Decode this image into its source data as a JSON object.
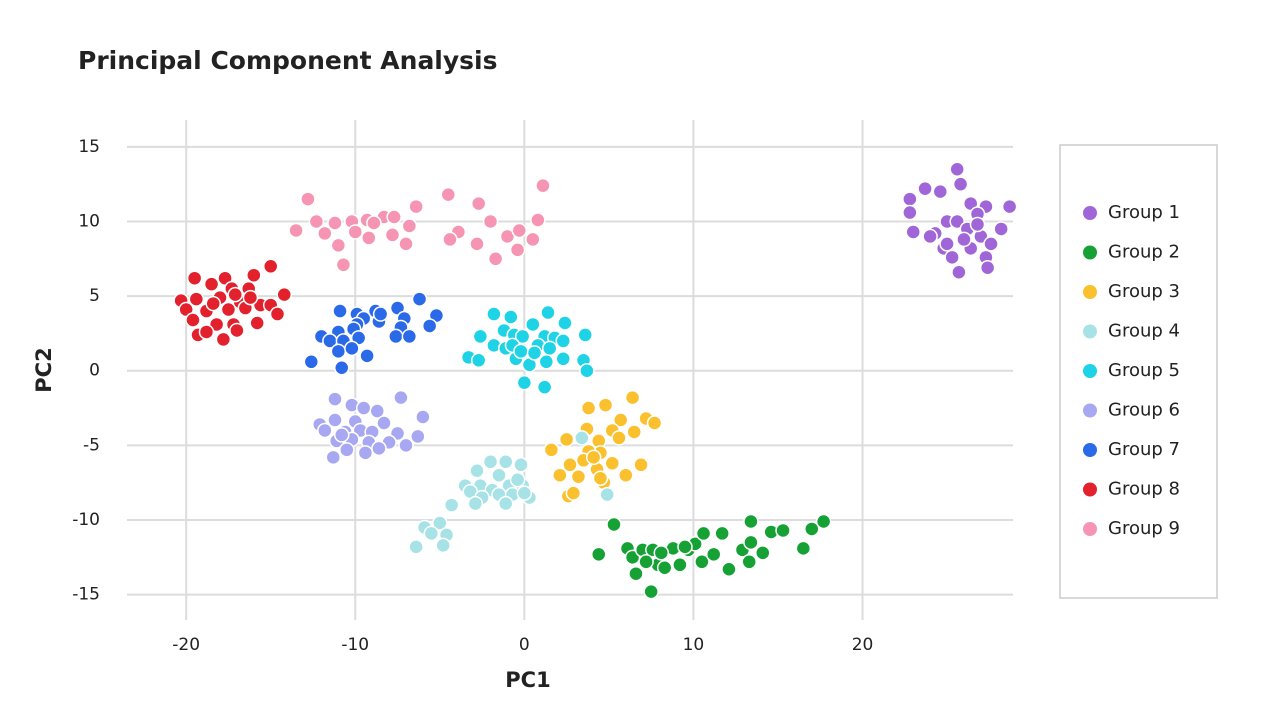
{
  "chart_data": {
    "type": "scatter",
    "title": "Principal Component Analysis",
    "x_label": "PC1",
    "y_label": "PC2",
    "xlim": [
      -23.5,
      28.9
    ],
    "ylim": [
      -16.7,
      16.8
    ],
    "xticks": [
      -20,
      -10,
      0,
      10,
      20
    ],
    "yticks": [
      15,
      10,
      5,
      0,
      -5,
      -10,
      -15
    ],
    "grid": true,
    "legend": "right",
    "series": [
      {
        "name": "Group 1",
        "color": "#a066d8",
        "x": [
          25.6,
          22.8,
          22.8,
          23.7,
          24.6,
          25.8,
          26.4,
          27.3,
          28.7,
          24.3,
          25,
          25.6,
          26.2,
          26.8,
          27,
          27.6,
          28.2,
          23,
          24,
          24.8,
          25.3,
          25.7,
          26.4,
          27.3,
          27.4,
          26,
          26.8,
          25
        ],
        "y": [
          13.5,
          11.5,
          10.6,
          12.2,
          12,
          12.5,
          11.2,
          11,
          11,
          9.2,
          10,
          10,
          9.5,
          10.5,
          9,
          8.5,
          9.5,
          9.3,
          9,
          8.2,
          7.6,
          6.6,
          8.2,
          7.6,
          6.9,
          8.8,
          9.8,
          8.5
        ]
      },
      {
        "name": "Group 2",
        "color": "#16a135",
        "x": [
          5.3,
          4.4,
          6.1,
          6.4,
          6.6,
          7,
          7.6,
          7.5,
          7.9,
          8.3,
          8.8,
          9.2,
          9.7,
          10.1,
          10.5,
          10.6,
          11.2,
          11.7,
          12.1,
          12.9,
          13.4,
          13.4,
          13.3,
          14.1,
          14.6,
          15.3,
          16.5,
          17,
          17.7,
          8.1,
          7.2,
          9.5
        ],
        "y": [
          -10.3,
          -12.3,
          -11.9,
          -12.5,
          -13.6,
          -12,
          -12,
          -14.8,
          -13,
          -13.2,
          -11.9,
          -13,
          -12,
          -11.6,
          -12.8,
          -10.9,
          -12.3,
          -10.9,
          -13.3,
          -12,
          -11.5,
          -10.1,
          -12.8,
          -12.2,
          -10.8,
          -10.7,
          -11.9,
          -10.6,
          -10.1,
          -12.2,
          -12.8,
          -11.8
        ]
      },
      {
        "name": "Group 3",
        "color": "#fbc02d",
        "x": [
          6.4,
          4.8,
          3.8,
          7.2,
          7.7,
          5.7,
          3.7,
          5.2,
          6.5,
          2.5,
          4.4,
          5.6,
          4.5,
          1.6,
          3.8,
          3.5,
          5.2,
          6.9,
          2.7,
          4.3,
          2.1,
          3.2,
          4.7,
          6,
          2.6,
          2.9,
          4.5,
          4.1
        ],
        "y": [
          -1.8,
          -2.3,
          -2.5,
          -3.2,
          -3.5,
          -3.3,
          -3.9,
          -4,
          -4.1,
          -4.6,
          -4.7,
          -4.5,
          -5.5,
          -5.3,
          -5.4,
          -6,
          -6.2,
          -6.3,
          -6.3,
          -6.6,
          -7,
          -7.1,
          -7.5,
          -7,
          -8.4,
          -8.2,
          -7.2,
          -5.8
        ]
      },
      {
        "name": "Group 4",
        "color": "#a7e3e6",
        "x": [
          3.4,
          4.9,
          -2,
          -1.1,
          -2.8,
          -0.2,
          -1.5,
          -3.5,
          -2.6,
          -1.9,
          -0.9,
          -0.1,
          -3.2,
          -2.5,
          -1.5,
          -0.7,
          0.3,
          -4.3,
          -2.9,
          -1.1,
          -5.9,
          -5,
          -5.5,
          -4.6,
          -6.4,
          -4.8,
          0,
          -0.4
        ],
        "y": [
          -4.5,
          -8.3,
          -6.1,
          -6.1,
          -6.7,
          -6.3,
          -7,
          -7.7,
          -7.7,
          -8,
          -7.7,
          -7.7,
          -8.1,
          -8.5,
          -8.3,
          -8.3,
          -8.5,
          -9,
          -8.9,
          -8.9,
          -10.5,
          -10.2,
          -10.9,
          -11,
          -11.8,
          -11.7,
          -8.2,
          -7.3
        ]
      },
      {
        "name": "Group 5",
        "color": "#1fd3e6",
        "x": [
          -1.8,
          -0.8,
          1.4,
          0.5,
          2.4,
          -2.6,
          -1.2,
          -0.6,
          -0.1,
          1.2,
          1.8,
          3.6,
          -1.8,
          -1.1,
          -0.7,
          0.8,
          1.5,
          2.3,
          -3.3,
          -2.7,
          -0.5,
          0.3,
          1.3,
          2.3,
          3.5,
          3.7,
          0,
          1.2,
          -0.2,
          0.6
        ],
        "y": [
          3.8,
          3.6,
          3.9,
          3.1,
          3.2,
          2.3,
          2.7,
          2.4,
          2.3,
          2.3,
          2.2,
          2.4,
          1.7,
          1.5,
          1.7,
          1.7,
          1.5,
          2,
          0.9,
          0.7,
          0.8,
          0.4,
          0.6,
          0.8,
          0.7,
          0,
          -0.8,
          -1.1,
          1.3,
          1.2
        ]
      },
      {
        "name": "Group 6",
        "color": "#a8a8f2",
        "x": [
          -11.2,
          -10.2,
          -7.3,
          -9.5,
          -8.7,
          -6,
          -11.2,
          -10,
          -8.3,
          -12.1,
          -11.8,
          -10.6,
          -9.7,
          -9,
          -7.5,
          -6.3,
          -11.1,
          -10.2,
          -9.2,
          -8,
          -7,
          -10.5,
          -9.4,
          -11.3,
          -8.6,
          -10.8
        ],
        "y": [
          -1.9,
          -2.3,
          -1.8,
          -2.5,
          -2.7,
          -3.1,
          -3.3,
          -3.4,
          -3.5,
          -3.6,
          -4,
          -4.1,
          -4,
          -4.1,
          -4.2,
          -4.4,
          -4.7,
          -4.6,
          -4.8,
          -4.8,
          -5,
          -5.3,
          -5.5,
          -5.8,
          -5.2,
          -4.3
        ]
      },
      {
        "name": "Group 7",
        "color": "#2a6ae8",
        "x": [
          -6.2,
          -10.9,
          -8.8,
          -7.5,
          -9.9,
          -9.5,
          -9.9,
          -7.1,
          -5.2,
          -8.6,
          -10.1,
          -11,
          -12,
          -7.3,
          -5.6,
          -11.5,
          -10.7,
          -9.8,
          -7.6,
          -6.8,
          -11,
          -10.2,
          -9.3,
          -12.6,
          -10.8,
          -8.5
        ],
        "y": [
          4.8,
          4,
          4,
          4.2,
          3.8,
          3.5,
          3.1,
          3.5,
          3.7,
          3.3,
          2.8,
          2.6,
          2.3,
          2.9,
          3,
          2,
          2,
          2.2,
          2.3,
          2.3,
          1.3,
          1.5,
          1,
          0.6,
          0.2,
          3.8
        ]
      },
      {
        "name": "Group 8",
        "color": "#e3212d",
        "x": [
          -15,
          -19.5,
          -17.7,
          -16,
          -18.5,
          -17.3,
          -16.3,
          -20.3,
          -19.4,
          -18,
          -16.8,
          -15.6,
          -14.2,
          -20,
          -18.8,
          -17.5,
          -16.5,
          -15,
          -19.6,
          -18.2,
          -17.2,
          -15.8,
          -14.6,
          -19.3,
          -18.8,
          -17.8,
          -17,
          -18.4,
          -17.1,
          -16.2
        ],
        "y": [
          7,
          6.2,
          6.2,
          6.4,
          5.8,
          5.5,
          5.5,
          4.7,
          4.8,
          4.9,
          4.6,
          4.4,
          5.1,
          4.1,
          4,
          4.1,
          4.2,
          4.4,
          3.4,
          3.1,
          3.1,
          3.2,
          3.8,
          2.4,
          2.6,
          2.1,
          2.7,
          4.5,
          5.1,
          4.9
        ]
      },
      {
        "name": "Group 9",
        "color": "#f595b3",
        "x": [
          -12.8,
          -6.4,
          -4.5,
          -2.7,
          1.1,
          -12.3,
          -11.2,
          -10.2,
          -9.3,
          -8.3,
          -7.7,
          -8.9,
          -2,
          0.8,
          -13.5,
          -11.8,
          -10,
          -9.2,
          -7.8,
          -6.8,
          -3.9,
          -1,
          0.5,
          -11,
          -7,
          -4.4,
          -2.8,
          -0.4,
          -10.7,
          -1.7,
          -0.3
        ],
        "y": [
          11.5,
          11,
          11.8,
          11.2,
          12.4,
          10,
          9.9,
          10,
          10.1,
          10.3,
          10.3,
          9.9,
          10,
          10.1,
          9.4,
          9.2,
          9.3,
          8.9,
          9.1,
          9.7,
          9.3,
          9,
          8.8,
          8.4,
          8.5,
          8.8,
          8.5,
          8.1,
          7.1,
          7.5,
          9.4
        ]
      }
    ]
  }
}
